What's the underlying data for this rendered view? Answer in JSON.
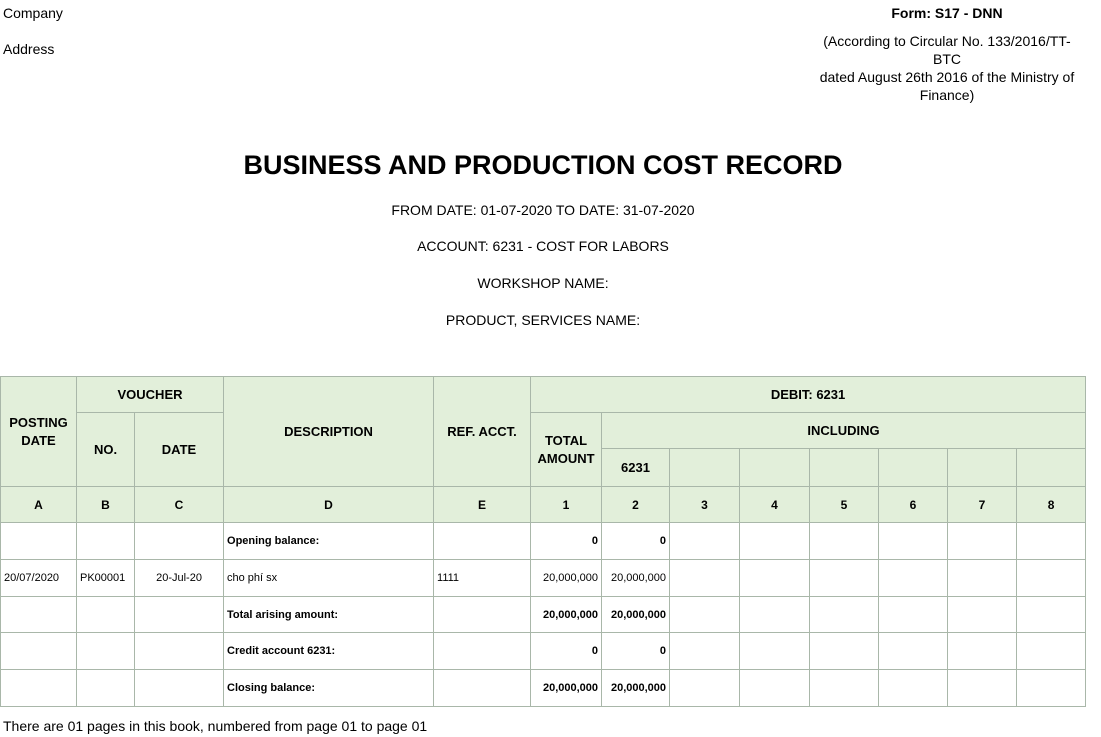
{
  "header": {
    "company": "Company",
    "address": "Address",
    "form": "Form: S17 - DNN",
    "circular": [
      "(According to Circular No. 133/2016/TT-BTC",
      "dated August 26th 2016 of the Ministry of Finance)"
    ]
  },
  "title": "BUSINESS AND PRODUCTION COST RECORD",
  "subtitles": [
    "FROM DATE: 01-07-2020 TO DATE: 31-07-2020",
    "ACCOUNT: 6231 - COST FOR LABORS",
    "WORKSHOP NAME:",
    "PRODUCT, SERVICES NAME:"
  ],
  "table": {
    "headers": {
      "posting_date": "POSTING DATE",
      "voucher": "VOUCHER",
      "no": "NO.",
      "date": "DATE",
      "description": "DESCRIPTION",
      "ref_acct": "REF. ACCT.",
      "debit": "DEBIT: 6231",
      "total_amount": "TOTAL AMOUNT",
      "including": "INCLUDING",
      "account": "6231"
    },
    "column_codes": [
      "A",
      "B",
      "C",
      "D",
      "E",
      "1",
      "2",
      "3",
      "4",
      "5",
      "6",
      "7",
      "8"
    ],
    "rows": [
      {
        "description": "Opening balance:",
        "total": "0",
        "account_6231": "0"
      },
      {
        "posting_date": "20/07/2020",
        "voucher_no": "PK00001",
        "voucher_date": "20-Jul-20",
        "description": "cho phí sx",
        "ref_acct": "1111",
        "total": "20,000,000",
        "account_6231": "20,000,000"
      },
      {
        "description": "Total arising amount:",
        "total": "20,000,000",
        "account_6231": "20,000,000"
      },
      {
        "description": "Credit account 6231:",
        "total": "0",
        "account_6231": "0"
      },
      {
        "description": "Closing balance:",
        "total": "20,000,000",
        "account_6231": "20,000,000"
      }
    ]
  },
  "footer": "There are 01 pages in this book, numbered from page 01 to page 01"
}
